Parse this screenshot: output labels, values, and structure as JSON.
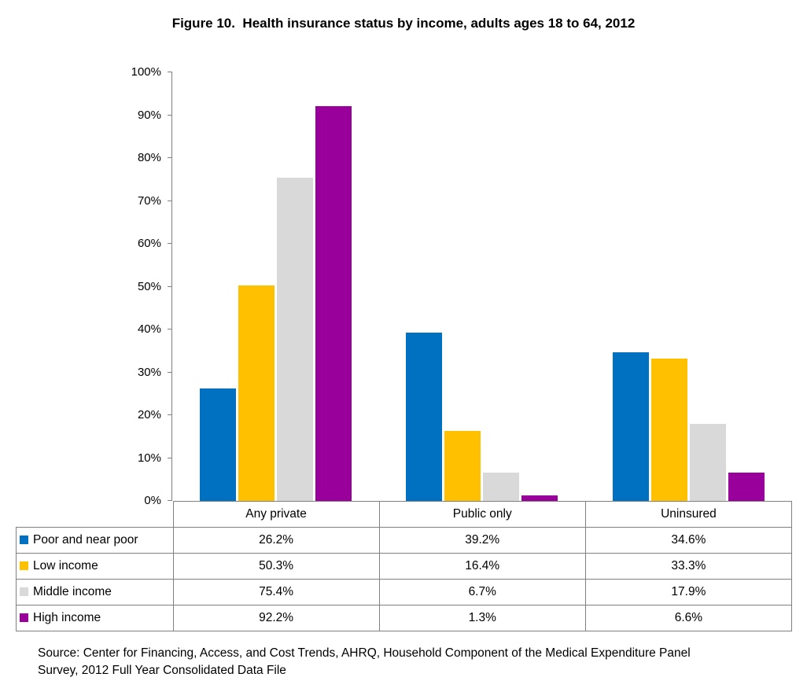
{
  "title": "Figure 10.  Health insurance status by income, adults ages 18 to 64, 2012",
  "chart_data": {
    "type": "bar",
    "title": "Figure 10.  Health insurance status by income, adults ages 18 to 64, 2012",
    "categories": [
      "Any private",
      "Public only",
      "Uninsured"
    ],
    "series": [
      {
        "name": "Poor and near poor",
        "color": "#0071C0",
        "values": [
          26.2,
          39.2,
          34.6
        ]
      },
      {
        "name": "Low income",
        "color": "#FFC000",
        "values": [
          50.3,
          16.4,
          33.3
        ]
      },
      {
        "name": "Middle income",
        "color": "#D9D9D9",
        "values": [
          75.4,
          6.7,
          17.9
        ]
      },
      {
        "name": "High income",
        "color": "#99009B",
        "values": [
          92.2,
          1.3,
          6.6
        ]
      }
    ],
    "xlabel": "",
    "ylabel": "",
    "ylim": [
      0,
      100
    ],
    "ytick_step": 10,
    "ytick_labels": [
      "0%",
      "10%",
      "20%",
      "30%",
      "40%",
      "50%",
      "60%",
      "70%",
      "80%",
      "90%",
      "100%"
    ],
    "grid": false,
    "axis_color": "#808080",
    "legend_position": "table-below-left",
    "value_format": "percent_one_decimal"
  },
  "table": {
    "column_headers": [
      "Any private",
      "Public only",
      "Uninsured"
    ],
    "rows": [
      {
        "label": "Poor and near poor",
        "swatch_color": "#0071C0",
        "values": [
          "26.2%",
          "39.2%",
          "34.6%"
        ]
      },
      {
        "label": "Low income",
        "swatch_color": "#FFC000",
        "values": [
          "50.3%",
          "16.4%",
          "33.3%"
        ]
      },
      {
        "label": "Middle income",
        "swatch_color": "#D9D9D9",
        "values": [
          "75.4%",
          "6.7%",
          "17.9%"
        ]
      },
      {
        "label": "High income",
        "swatch_color": "#99009B",
        "values": [
          "92.2%",
          "1.3%",
          "6.6%"
        ]
      }
    ],
    "border_color": "#808080"
  },
  "source": {
    "lines": [
      "Source: Center for Financing, Access, and Cost Trends, AHRQ, Household Component of the Medical Expenditure Panel",
      "Survey, 2012 Full Year Consolidated Data File"
    ]
  }
}
